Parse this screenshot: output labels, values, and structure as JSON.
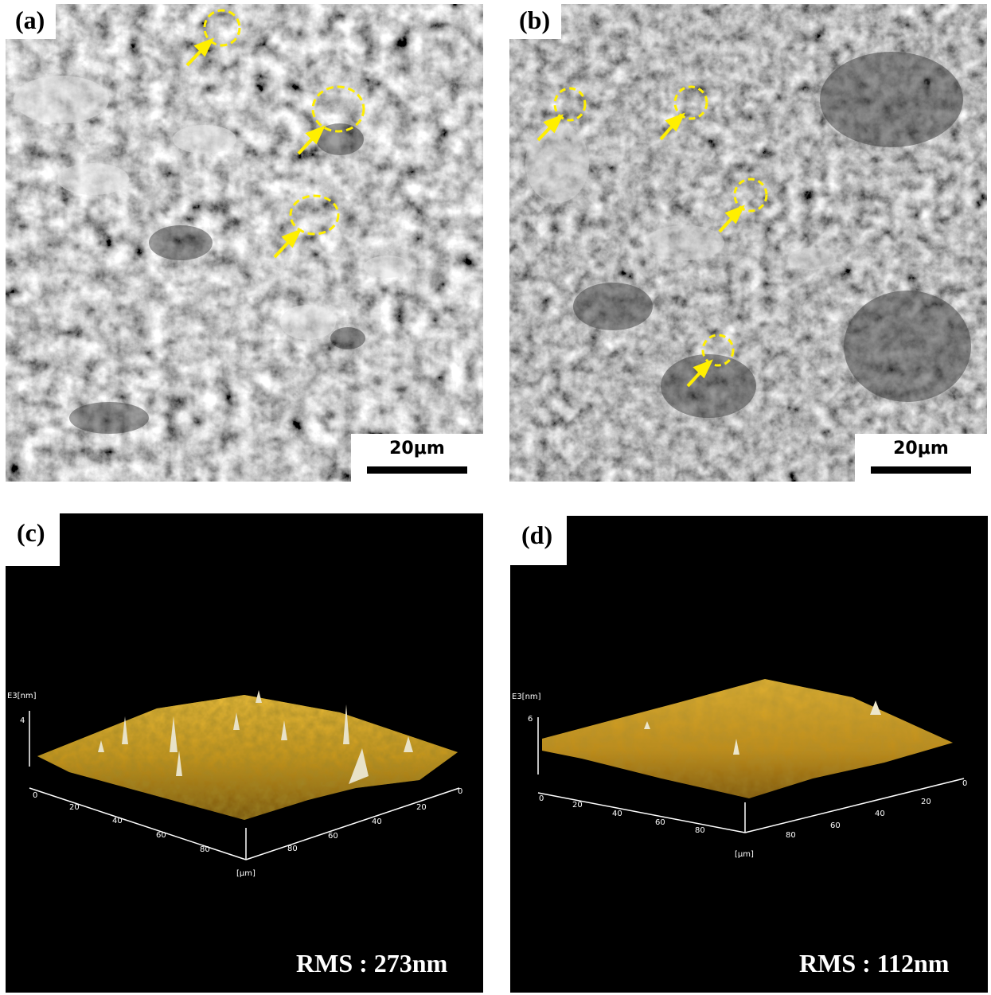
{
  "panels": {
    "a": {
      "label": "(a)",
      "scale_label": "20μm"
    },
    "b": {
      "label": "(b)",
      "scale_label": "20μm"
    },
    "c": {
      "label": "(c)",
      "rms": "RMS : 273nm",
      "z_unit": "E3[nm]",
      "z_tick": "4",
      "x_ticks": [
        "0",
        "20",
        "40",
        "60",
        "80"
      ],
      "y_ticks": [
        "0",
        "20",
        "40",
        "60",
        "80"
      ],
      "unit": "[μm]"
    },
    "d": {
      "label": "(d)",
      "rms": "RMS : 112nm",
      "z_unit": "E3[nm]",
      "z_tick": "6",
      "x_ticks": [
        "0",
        "20",
        "40",
        "60",
        "80"
      ],
      "y_ticks": [
        "0",
        "20",
        "40",
        "60",
        "80"
      ],
      "unit": "[μm]"
    }
  },
  "colors": {
    "annotation": "#ffef00",
    "afm_surface": "#c9961a",
    "background_afm": "#000000"
  }
}
